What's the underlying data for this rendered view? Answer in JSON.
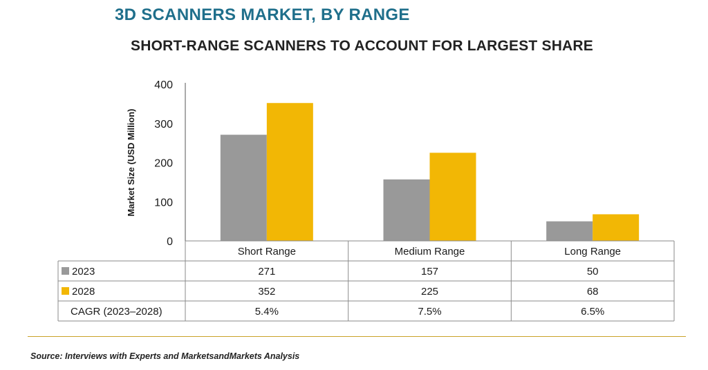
{
  "title": "3D SCANNERS MARKET, BY RANGE",
  "subtitle": "SHORT-RANGE SCANNERS TO ACCOUNT FOR LARGEST SHARE",
  "source": "Source: Interviews with Experts and MarketsandMarkets Analysis",
  "colors": {
    "title": "#1f6f8b",
    "series_2023": "#999999",
    "series_2028": "#f2b705",
    "source_rule": "#c9a227"
  },
  "chart_data": {
    "type": "bar",
    "categories": [
      "Short Range",
      "Medium Range",
      "Long Range"
    ],
    "series": [
      {
        "name": "2023",
        "values": [
          271,
          157,
          50
        ],
        "color": "#999999"
      },
      {
        "name": "2028",
        "values": [
          352,
          225,
          68
        ],
        "color": "#f2b705"
      }
    ],
    "ylabel": "Market Size (USD Million)",
    "ylim": [
      0,
      400
    ],
    "yticks": [
      0,
      100,
      200,
      300,
      400
    ],
    "grid": false,
    "table": {
      "row_labels": [
        "2023",
        "2028",
        "CAGR (2023–2028)"
      ],
      "rows": [
        [
          "271",
          "157",
          "50"
        ],
        [
          "352",
          "225",
          "68"
        ],
        [
          "5.4%",
          "7.5%",
          "6.5%"
        ]
      ]
    }
  }
}
